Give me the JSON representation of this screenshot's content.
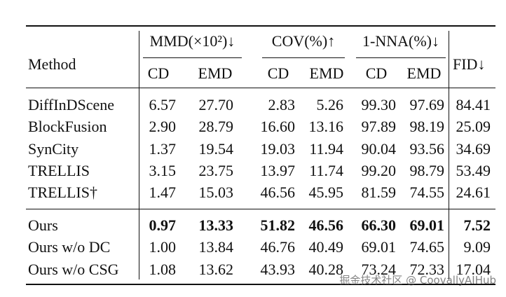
{
  "header": {
    "method": "Method",
    "groups": [
      {
        "label": "MMD(×10²)↓",
        "columns": [
          "CD",
          "EMD"
        ]
      },
      {
        "label": "COV(%)↑",
        "columns": [
          "CD",
          "EMD"
        ]
      },
      {
        "label": "1-NNA(%)↓",
        "columns": [
          "CD",
          "EMD"
        ]
      }
    ],
    "fid": "FID↓"
  },
  "sections": [
    {
      "rows": [
        {
          "method": "DiffInDScene",
          "values": [
            "6.57",
            "27.70",
            "2.83",
            "5.26",
            "99.30",
            "97.69",
            "84.41"
          ]
        },
        {
          "method": "BlockFusion",
          "values": [
            "2.90",
            "28.79",
            "16.60",
            "13.16",
            "97.89",
            "98.19",
            "25.09"
          ]
        },
        {
          "method": "SynCity",
          "values": [
            "1.37",
            "19.54",
            "19.03",
            "11.94",
            "90.04",
            "93.56",
            "34.69"
          ]
        },
        {
          "method": "TRELLIS",
          "values": [
            "3.15",
            "23.75",
            "13.97",
            "11.74",
            "99.20",
            "98.79",
            "53.49"
          ]
        },
        {
          "method": "TRELLIS†",
          "values": [
            "1.47",
            "15.03",
            "46.56",
            "45.95",
            "81.59",
            "74.55",
            "24.61"
          ]
        }
      ]
    },
    {
      "rows": [
        {
          "method": "Ours",
          "values": [
            "0.97",
            "13.33",
            "51.82",
            "46.56",
            "66.30",
            "69.01",
            "7.52"
          ]
        },
        {
          "method": "Ours w/o DC",
          "values": [
            "1.00",
            "13.84",
            "46.76",
            "40.49",
            "69.01",
            "74.65",
            "9.09"
          ]
        },
        {
          "method": "Ours w/o CSG",
          "values": [
            "1.08",
            "13.62",
            "43.93",
            "40.28",
            "73.24",
            "72.33",
            "17.04"
          ]
        }
      ]
    }
  ],
  "watermark": "掘金技术社区 @ CoovallyAIHub"
}
